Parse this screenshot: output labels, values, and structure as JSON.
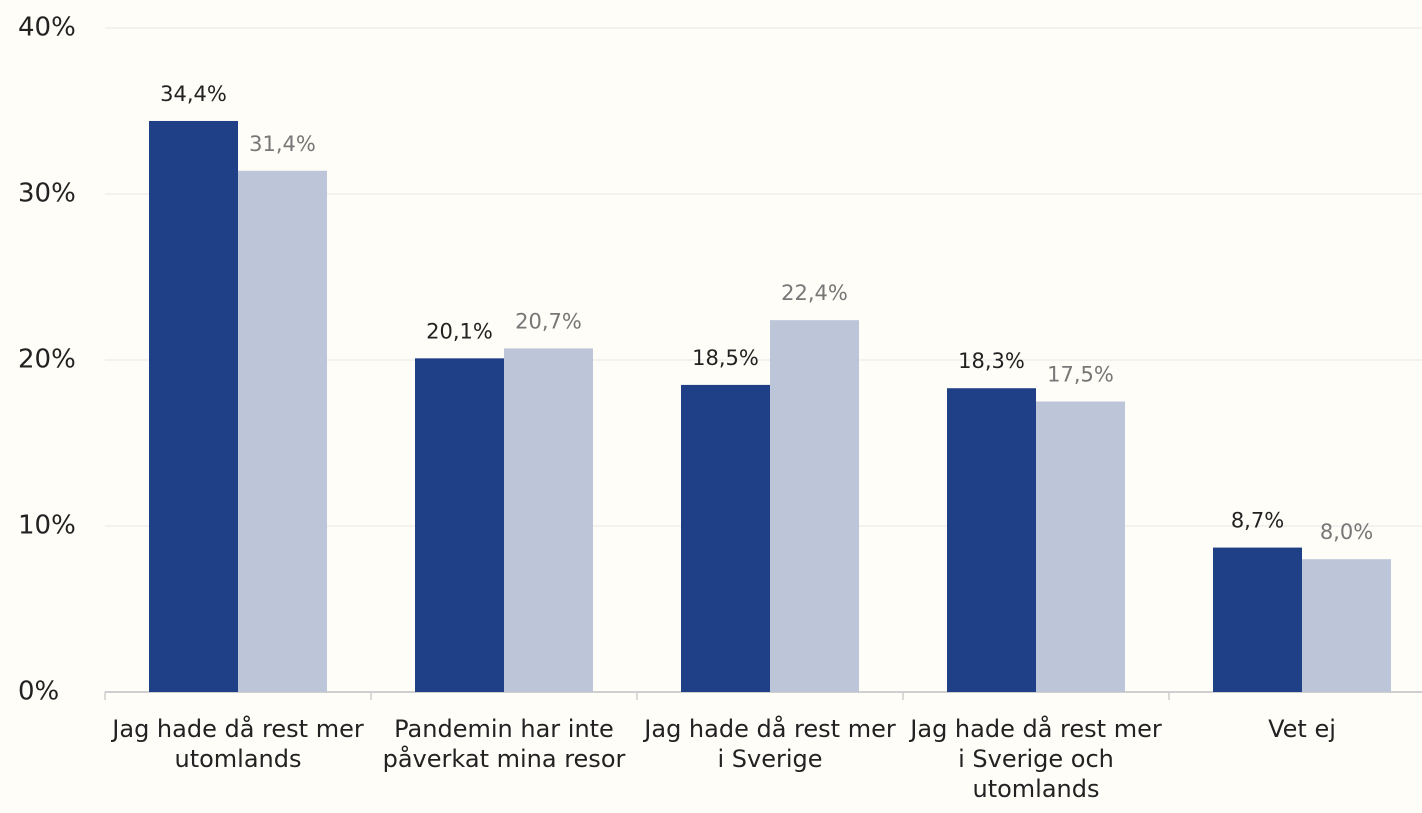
{
  "chart_data": {
    "type": "bar",
    "categories": [
      "Jag hade då rest mer utomlands",
      "Pandemin har inte påverkat mina resor",
      "Jag hade då rest mer i Sverige",
      "Jag hade då rest mer i Sverige och utomlands",
      "Vet ej"
    ],
    "series": [
      {
        "color": "#1f3f87",
        "values": [
          34.4,
          20.1,
          18.5,
          18.3,
          8.7
        ],
        "value_labels": [
          "34,4%",
          "20,1%",
          "18,5%",
          "18,3%",
          "8,7%"
        ]
      },
      {
        "color": "#bcc6d8",
        "values": [
          31.4,
          20.7,
          22.4,
          17.5,
          8.0
        ],
        "value_labels": [
          "31,4%",
          "20,7%",
          "22,4%",
          "17,5%",
          "8,0%"
        ]
      }
    ],
    "ylim": [
      0,
      40
    ],
    "yticks": [
      {
        "value": 0,
        "label": "0%"
      },
      {
        "value": 10,
        "label": "10%"
      },
      {
        "value": 20,
        "label": "20%"
      },
      {
        "value": 30,
        "label": "30%"
      },
      {
        "value": 40,
        "label": "40%"
      }
    ],
    "grid": true
  }
}
